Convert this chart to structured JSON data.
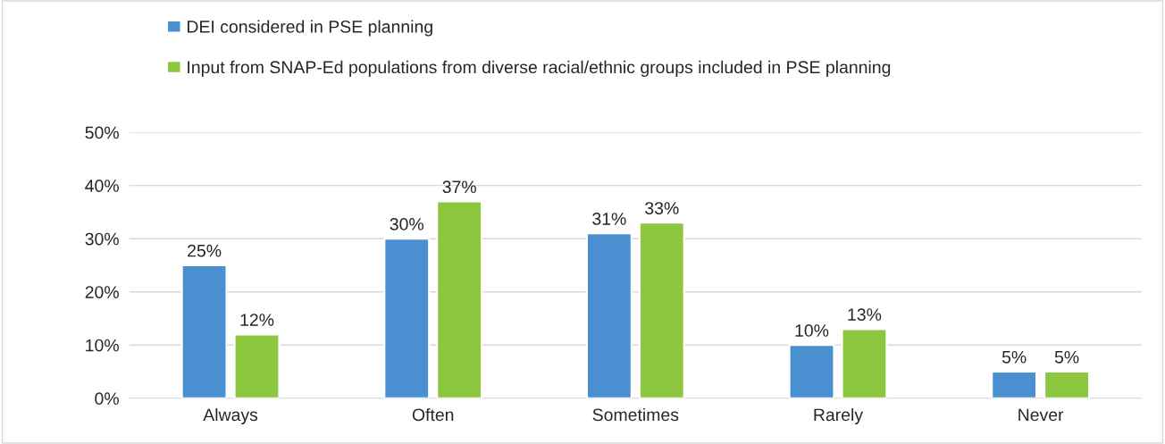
{
  "chart_data": {
    "type": "bar",
    "categories": [
      "Always",
      "Often",
      "Sometimes",
      "Rarely",
      "Never"
    ],
    "series": [
      {
        "name": "DEI considered in PSE planning",
        "color": "#4a8fcf",
        "values": [
          25,
          30,
          31,
          10,
          5
        ],
        "value_labels": [
          "25%",
          "30%",
          "31%",
          "10%",
          "5%"
        ]
      },
      {
        "name": "Input from SNAP-Ed populations from diverse racial/ethnic groups included in PSE planning",
        "color": "#8dc63f",
        "values": [
          12,
          37,
          33,
          13,
          5
        ],
        "value_labels": [
          "12%",
          "37%",
          "33%",
          "13%",
          "5%"
        ]
      }
    ],
    "ylim": [
      0,
      50
    ],
    "yticks": [
      {
        "value": 0,
        "label": "0%"
      },
      {
        "value": 10,
        "label": "10%"
      },
      {
        "value": 20,
        "label": "20%"
      },
      {
        "value": 30,
        "label": "30%"
      },
      {
        "value": 40,
        "label": "40%"
      },
      {
        "value": 50,
        "label": "50%"
      }
    ],
    "grid": "y",
    "legend": "top left"
  }
}
